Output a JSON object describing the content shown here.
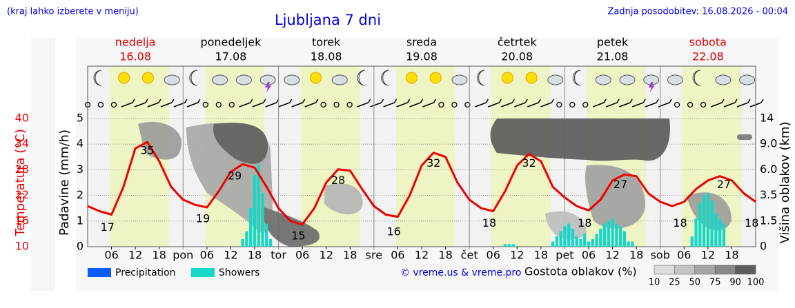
{
  "chart_data": {
    "type": "meteogram",
    "title": "Ljubljana 7 dni",
    "note": "(kraj lahko izberete v meniju)",
    "updated": "Zadnja posodobitev: 16.08.2026 - 00:04",
    "days": [
      {
        "name": "nedelja",
        "date": "16.08",
        "color": "#e00000"
      },
      {
        "name": "ponedeljek",
        "date": "17.08",
        "color": "#000000"
      },
      {
        "name": "torek",
        "date": "18.08",
        "color": "#000000"
      },
      {
        "name": "sreda",
        "date": "19.08",
        "color": "#000000"
      },
      {
        "name": "četrtek",
        "date": "20.08",
        "color": "#000000"
      },
      {
        "name": "petek",
        "date": "21.08",
        "color": "#000000"
      },
      {
        "name": "sobota",
        "date": "22.08",
        "color": "#e00000"
      }
    ],
    "xlim": [
      0,
      168
    ],
    "xticks": [
      {
        "value": 6,
        "label": "06"
      },
      12,
      18,
      {
        "value": 24,
        "label": "pon"
      },
      {
        "value": 30,
        "label": "06"
      },
      {
        "value": 36,
        "label": "12"
      },
      {
        "value": 42,
        "label": "18"
      },
      {
        "value": 48,
        "label": "tor"
      },
      {
        "value": 54,
        "label": "06"
      },
      {
        "value": 60,
        "label": "12"
      },
      {
        "value": 66,
        "label": "18"
      },
      {
        "value": 72,
        "label": "sre"
      },
      {
        "value": 78,
        "label": "06"
      },
      {
        "value": 84,
        "label": "12"
      },
      {
        "value": 90,
        "label": "18"
      },
      {
        "value": 96,
        "label": "čet"
      },
      {
        "value": 102,
        "label": "06"
      },
      {
        "value": 108,
        "label": "12"
      },
      {
        "value": 114,
        "label": "18"
      },
      {
        "value": 120,
        "label": "pet"
      },
      {
        "value": 126,
        "label": "06"
      },
      {
        "value": 132,
        "label": "12"
      },
      {
        "value": 138,
        "label": "18"
      },
      {
        "value": 144,
        "label": "sob"
      },
      {
        "value": 150,
        "label": "06"
      },
      {
        "value": 156,
        "label": "12"
      },
      {
        "value": 162,
        "label": "18"
      }
    ],
    "ylabel": "Padavine (mm/h)",
    "ylim": [
      0,
      5
    ],
    "yticks": [
      0,
      1,
      2,
      3,
      4,
      5
    ],
    "grid": true,
    "temperature": {
      "label": "Temperatura (°C)",
      "color": "#ee0000",
      "lim": [
        10,
        40
      ],
      "ticks": [
        10,
        16,
        22,
        28,
        34,
        40
      ],
      "x": [
        0,
        3,
        6,
        9,
        12,
        15,
        18,
        21,
        24,
        27,
        30,
        33,
        36,
        39,
        42,
        45,
        48,
        51,
        54,
        57,
        60,
        63,
        66,
        69,
        72,
        75,
        78,
        81,
        84,
        87,
        90,
        93,
        96,
        99,
        102,
        105,
        108,
        111,
        114,
        117,
        120,
        123,
        126,
        129,
        132,
        135,
        138,
        141,
        144,
        147,
        150,
        153,
        156,
        159,
        162,
        165,
        168
      ],
      "values": [
        19.5,
        18.3,
        17.5,
        24,
        33,
        34.5,
        30,
        24,
        21,
        19.8,
        19.2,
        23,
        27.5,
        29.3,
        28.5,
        24,
        19,
        16,
        15.2,
        19,
        25,
        28.1,
        27.8,
        23.5,
        19.5,
        17.5,
        17,
        22,
        29,
        32,
        31,
        25,
        21,
        19,
        18.3,
        23,
        29,
        31.7,
        30,
        24,
        21.5,
        19.5,
        18.5,
        21,
        25.5,
        26.9,
        26.5,
        22.5,
        20.5,
        19.5,
        20.5,
        23.5,
        25.5,
        26.5,
        25.5,
        22.5,
        20.5
      ],
      "extremes": [
        {
          "hour": 5,
          "value": 17
        },
        {
          "hour": 15,
          "value": 35
        },
        {
          "hour": 29,
          "value": 19
        },
        {
          "hour": 37,
          "value": 29
        },
        {
          "hour": 53,
          "value": 15
        },
        {
          "hour": 63,
          "value": 28
        },
        {
          "hour": 77,
          "value": 16
        },
        {
          "hour": 87,
          "value": 32
        },
        {
          "hour": 101,
          "value": 18
        },
        {
          "hour": 111,
          "value": 32
        },
        {
          "hour": 125,
          "value": 18
        },
        {
          "hour": 134,
          "value": 27
        },
        {
          "hour": 149,
          "value": 18
        },
        {
          "hour": 160,
          "value": 27
        },
        {
          "hour": 167,
          "value": 18
        }
      ]
    },
    "cloud_height": {
      "label": "Višina oblakov (km)",
      "ticks": [
        0,
        {
          "value": 1.5,
          "label": "1.5"
        },
        3.5,
        {
          "value": 6,
          "label": "6.0"
        },
        {
          "value": 9,
          "label": "9.0"
        },
        14
      ]
    },
    "series": [
      {
        "name": "Precipitation",
        "color": "#0a5cff",
        "x": [],
        "values": []
      },
      {
        "name": "Showers",
        "color": "#17d8c8",
        "x": [
          39,
          40,
          41,
          42,
          43,
          44,
          45,
          46,
          105,
          106,
          107,
          117,
          118,
          119,
          120,
          121,
          122,
          123,
          124,
          125,
          126,
          127,
          128,
          129,
          130,
          131,
          132,
          133,
          134,
          135,
          136,
          137,
          152,
          153,
          154,
          155,
          156,
          157,
          158,
          159,
          160
        ],
        "values": [
          0.3,
          0.6,
          1.5,
          2.8,
          3.2,
          2.1,
          0.9,
          0.3,
          0.1,
          0.1,
          0.1,
          0.2,
          0.4,
          0.6,
          0.8,
          0.9,
          0.7,
          0.4,
          0.3,
          0.5,
          0.2,
          0.3,
          0.5,
          0.7,
          0.9,
          1.0,
          1.1,
          0.9,
          0.8,
          0.6,
          0.2,
          0.2,
          0.4,
          1.1,
          1.7,
          2.0,
          2.1,
          1.8,
          1.3,
          1.1,
          0.9
        ]
      }
    ],
    "copyright": "© vreme.us & vreme.pro",
    "cloud_density": {
      "label": "Gostota oblakov (%)",
      "ticks": [
        10,
        25,
        50,
        75,
        90,
        100
      ],
      "colors": [
        "#dddddd",
        "#c4c4c4",
        "#a6a6a6",
        "#888888",
        "#5e5e5e"
      ]
    }
  }
}
